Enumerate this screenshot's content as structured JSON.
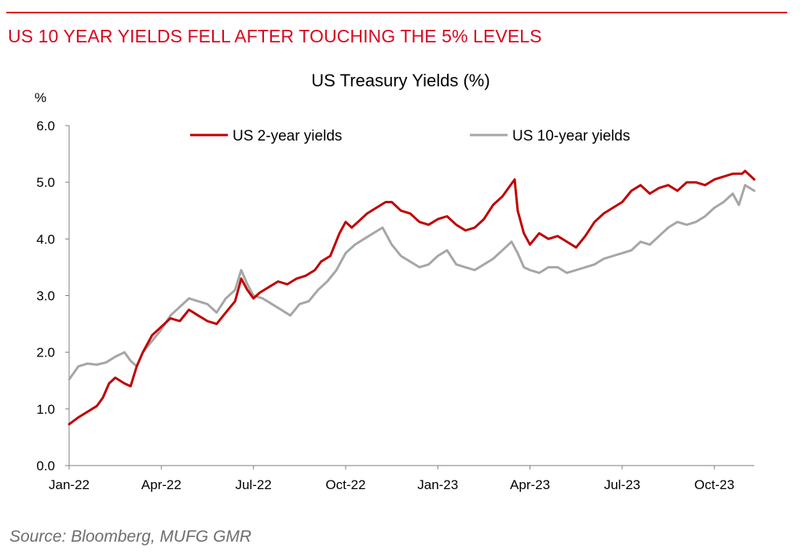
{
  "headline": "US 10 YEAR YIELDS FELL AFTER TOUCHING THE 5% LEVELS",
  "source": "Source: Bloomberg, MUFG GMR",
  "colors": {
    "accent": "#d7081f",
    "us2": "#c00000",
    "us10": "#a6a6a6"
  },
  "chart_data": {
    "type": "line",
    "title": "US Treasury Yields (%)",
    "ylabel": "%",
    "xlabel": "",
    "ylim": [
      0,
      6
    ],
    "yticks": [
      0,
      1,
      2,
      3,
      4,
      5,
      6
    ],
    "ytick_labels": [
      "0.0",
      "1.0",
      "2.0",
      "3.0",
      "4.0",
      "5.0",
      "6.0"
    ],
    "xlim": [
      0,
      22.3
    ],
    "xticks": [
      0,
      3,
      6,
      9,
      12,
      15,
      18,
      21
    ],
    "xtick_labels": [
      "Jan-22",
      "Apr-22",
      "Jul-22",
      "Oct-22",
      "Jan-23",
      "Apr-23",
      "Jul-23",
      "Oct-23"
    ],
    "legend": "top",
    "grid": false,
    "series": [
      {
        "name": "US 2-year yields",
        "color": "#c00000",
        "points": [
          [
            0,
            0.73
          ],
          [
            0.3,
            0.85
          ],
          [
            0.6,
            0.95
          ],
          [
            0.9,
            1.05
          ],
          [
            1.1,
            1.2
          ],
          [
            1.3,
            1.45
          ],
          [
            1.5,
            1.55
          ],
          [
            1.8,
            1.45
          ],
          [
            2.0,
            1.4
          ],
          [
            2.2,
            1.75
          ],
          [
            2.4,
            2.0
          ],
          [
            2.7,
            2.3
          ],
          [
            3.0,
            2.45
          ],
          [
            3.3,
            2.6
          ],
          [
            3.6,
            2.55
          ],
          [
            3.9,
            2.75
          ],
          [
            4.2,
            2.65
          ],
          [
            4.5,
            2.55
          ],
          [
            4.8,
            2.5
          ],
          [
            5.1,
            2.7
          ],
          [
            5.4,
            2.9
          ],
          [
            5.6,
            3.3
          ],
          [
            5.8,
            3.1
          ],
          [
            6.0,
            2.95
          ],
          [
            6.2,
            3.05
          ],
          [
            6.5,
            3.15
          ],
          [
            6.8,
            3.25
          ],
          [
            7.1,
            3.2
          ],
          [
            7.4,
            3.3
          ],
          [
            7.7,
            3.35
          ],
          [
            8.0,
            3.45
          ],
          [
            8.2,
            3.6
          ],
          [
            8.5,
            3.7
          ],
          [
            8.8,
            4.1
          ],
          [
            9.0,
            4.3
          ],
          [
            9.2,
            4.2
          ],
          [
            9.4,
            4.3
          ],
          [
            9.7,
            4.45
          ],
          [
            10.0,
            4.55
          ],
          [
            10.3,
            4.65
          ],
          [
            10.5,
            4.65
          ],
          [
            10.8,
            4.5
          ],
          [
            11.1,
            4.45
          ],
          [
            11.4,
            4.3
          ],
          [
            11.7,
            4.25
          ],
          [
            12.0,
            4.35
          ],
          [
            12.3,
            4.4
          ],
          [
            12.6,
            4.25
          ],
          [
            12.9,
            4.15
          ],
          [
            13.2,
            4.2
          ],
          [
            13.5,
            4.35
          ],
          [
            13.8,
            4.6
          ],
          [
            14.1,
            4.75
          ],
          [
            14.3,
            4.9
          ],
          [
            14.5,
            5.05
          ],
          [
            14.6,
            4.5
          ],
          [
            14.8,
            4.1
          ],
          [
            15.0,
            3.9
          ],
          [
            15.3,
            4.1
          ],
          [
            15.6,
            4.0
          ],
          [
            15.9,
            4.05
          ],
          [
            16.2,
            3.95
          ],
          [
            16.5,
            3.85
          ],
          [
            16.8,
            4.05
          ],
          [
            17.1,
            4.3
          ],
          [
            17.4,
            4.45
          ],
          [
            17.7,
            4.55
          ],
          [
            18.0,
            4.65
          ],
          [
            18.3,
            4.85
          ],
          [
            18.6,
            4.95
          ],
          [
            18.9,
            4.8
          ],
          [
            19.2,
            4.9
          ],
          [
            19.5,
            4.95
          ],
          [
            19.8,
            4.85
          ],
          [
            20.1,
            5.0
          ],
          [
            20.4,
            5.0
          ],
          [
            20.7,
            4.95
          ],
          [
            21.0,
            5.05
          ],
          [
            21.3,
            5.1
          ],
          [
            21.6,
            5.15
          ],
          [
            21.9,
            5.15
          ],
          [
            22.0,
            5.2
          ],
          [
            22.3,
            5.05
          ]
        ]
      },
      {
        "name": "US 10-year yields",
        "color": "#a6a6a6",
        "points": [
          [
            0,
            1.52
          ],
          [
            0.3,
            1.75
          ],
          [
            0.6,
            1.8
          ],
          [
            0.9,
            1.78
          ],
          [
            1.2,
            1.82
          ],
          [
            1.5,
            1.92
          ],
          [
            1.8,
            2.0
          ],
          [
            2.0,
            1.85
          ],
          [
            2.2,
            1.75
          ],
          [
            2.4,
            2.0
          ],
          [
            2.7,
            2.2
          ],
          [
            3.0,
            2.4
          ],
          [
            3.3,
            2.65
          ],
          [
            3.6,
            2.8
          ],
          [
            3.9,
            2.95
          ],
          [
            4.2,
            2.9
          ],
          [
            4.5,
            2.85
          ],
          [
            4.8,
            2.7
          ],
          [
            5.1,
            2.95
          ],
          [
            5.4,
            3.1
          ],
          [
            5.6,
            3.45
          ],
          [
            5.8,
            3.2
          ],
          [
            6.0,
            3.0
          ],
          [
            6.3,
            2.95
          ],
          [
            6.6,
            2.85
          ],
          [
            6.9,
            2.75
          ],
          [
            7.2,
            2.65
          ],
          [
            7.5,
            2.85
          ],
          [
            7.8,
            2.9
          ],
          [
            8.1,
            3.1
          ],
          [
            8.4,
            3.25
          ],
          [
            8.7,
            3.45
          ],
          [
            9.0,
            3.75
          ],
          [
            9.3,
            3.9
          ],
          [
            9.6,
            4.0
          ],
          [
            9.9,
            4.1
          ],
          [
            10.2,
            4.2
          ],
          [
            10.5,
            3.9
          ],
          [
            10.8,
            3.7
          ],
          [
            11.1,
            3.6
          ],
          [
            11.4,
            3.5
          ],
          [
            11.7,
            3.55
          ],
          [
            12.0,
            3.7
          ],
          [
            12.3,
            3.8
          ],
          [
            12.6,
            3.55
          ],
          [
            12.9,
            3.5
          ],
          [
            13.2,
            3.45
          ],
          [
            13.5,
            3.55
          ],
          [
            13.8,
            3.65
          ],
          [
            14.1,
            3.8
          ],
          [
            14.4,
            3.95
          ],
          [
            14.6,
            3.75
          ],
          [
            14.8,
            3.5
          ],
          [
            15.0,
            3.45
          ],
          [
            15.3,
            3.4
          ],
          [
            15.6,
            3.5
          ],
          [
            15.9,
            3.5
          ],
          [
            16.2,
            3.4
          ],
          [
            16.5,
            3.45
          ],
          [
            16.8,
            3.5
          ],
          [
            17.1,
            3.55
          ],
          [
            17.4,
            3.65
          ],
          [
            17.7,
            3.7
          ],
          [
            18.0,
            3.75
          ],
          [
            18.3,
            3.8
          ],
          [
            18.6,
            3.95
          ],
          [
            18.9,
            3.9
          ],
          [
            19.2,
            4.05
          ],
          [
            19.5,
            4.2
          ],
          [
            19.8,
            4.3
          ],
          [
            20.1,
            4.25
          ],
          [
            20.4,
            4.3
          ],
          [
            20.7,
            4.4
          ],
          [
            21.0,
            4.55
          ],
          [
            21.3,
            4.65
          ],
          [
            21.6,
            4.8
          ],
          [
            21.8,
            4.6
          ],
          [
            22.0,
            4.95
          ],
          [
            22.3,
            4.85
          ]
        ]
      }
    ]
  }
}
